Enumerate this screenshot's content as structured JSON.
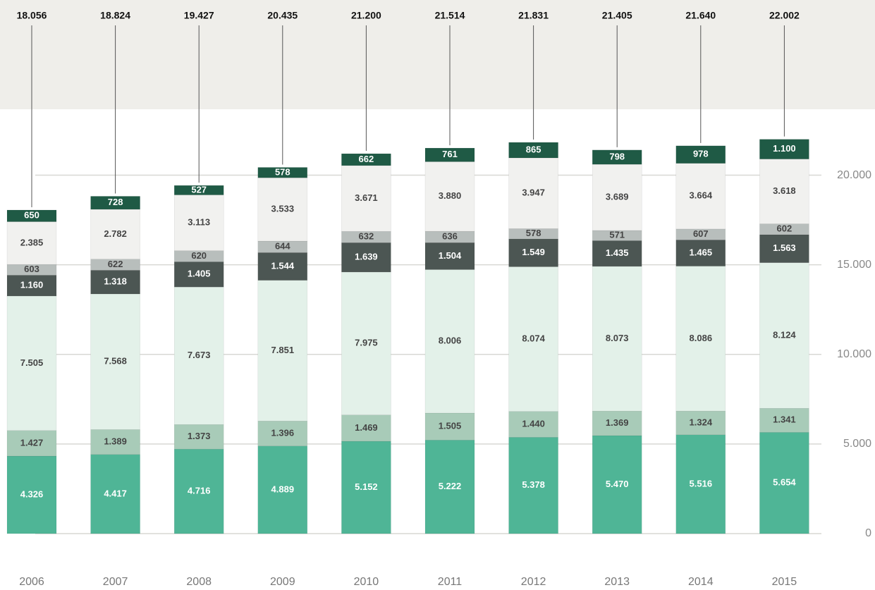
{
  "chart_data": {
    "type": "stacked-bar",
    "categories": [
      "2006",
      "2007",
      "2008",
      "2009",
      "2010",
      "2011",
      "2012",
      "2013",
      "2014",
      "2015"
    ],
    "series": [
      {
        "color": "#4fb596",
        "values": [
          4326,
          4417,
          4716,
          4889,
          5152,
          5222,
          5378,
          5470,
          5516,
          5654
        ],
        "value_labels": [
          "4.326",
          "4.417",
          "4.716",
          "4.889",
          "5.152",
          "5.222",
          "5.378",
          "5.470",
          "5.516",
          "5.654"
        ]
      },
      {
        "color": "#a8cbb8",
        "values": [
          1427,
          1389,
          1373,
          1396,
          1469,
          1505,
          1440,
          1369,
          1324,
          1341
        ],
        "value_labels": [
          "1.427",
          "1.389",
          "1.373",
          "1.396",
          "1.469",
          "1.505",
          "1.440",
          "1.369",
          "1.324",
          "1.341"
        ]
      },
      {
        "color": "#e3f1e9",
        "values": [
          7505,
          7568,
          7673,
          7851,
          7975,
          8006,
          8074,
          8073,
          8086,
          8124
        ],
        "value_labels": [
          "7.505",
          "7.568",
          "7.673",
          "7.851",
          "7.975",
          "8.006",
          "8.074",
          "8.073",
          "8.086",
          "8.124"
        ]
      },
      {
        "color": "#4c5653",
        "values": [
          1160,
          1318,
          1405,
          1544,
          1639,
          1504,
          1549,
          1435,
          1465,
          1563
        ],
        "value_labels": [
          "1.160",
          "1.318",
          "1.405",
          "1.544",
          "1.639",
          "1.504",
          "1.549",
          "1.435",
          "1.465",
          "1.563"
        ]
      },
      {
        "color": "#b8bebc",
        "values": [
          603,
          622,
          620,
          644,
          632,
          636,
          578,
          571,
          607,
          602
        ],
        "value_labels": [
          "603",
          "622",
          "620",
          "644",
          "632",
          "636",
          "578",
          "571",
          "607",
          "602"
        ]
      },
      {
        "color": "#f1f1ef",
        "values": [
          2385,
          2782,
          3113,
          3533,
          3671,
          3880,
          3947,
          3689,
          3664,
          3618
        ],
        "value_labels": [
          "2.385",
          "2.782",
          "3.113",
          "3.533",
          "3.671",
          "3.880",
          "3.947",
          "3.689",
          "3.664",
          "3.618"
        ]
      },
      {
        "color": "#1f5a45",
        "values": [
          650,
          728,
          527,
          578,
          662,
          761,
          865,
          798,
          978,
          1100
        ],
        "value_labels": [
          "650",
          "728",
          "527",
          "578",
          "662",
          "761",
          "865",
          "798",
          "978",
          "1.100"
        ]
      }
    ],
    "totals": {
      "values": [
        18056,
        18824,
        19427,
        20435,
        21200,
        21514,
        21831,
        21405,
        21640,
        22002
      ],
      "value_labels": [
        "18.056",
        "18.824",
        "19.427",
        "20.435",
        "21.200",
        "21.514",
        "21.831",
        "21.405",
        "21.640",
        "22.002"
      ]
    },
    "ylim": [
      0,
      22500
    ],
    "yticks": [
      0,
      {
        "value": 5000,
        "label": "5.000"
      },
      {
        "value": 10000,
        "label": "10.000"
      },
      {
        "value": 15000,
        "label": "15.000"
      },
      {
        "value": 20000,
        "label": "20.000"
      }
    ],
    "grid": true
  }
}
